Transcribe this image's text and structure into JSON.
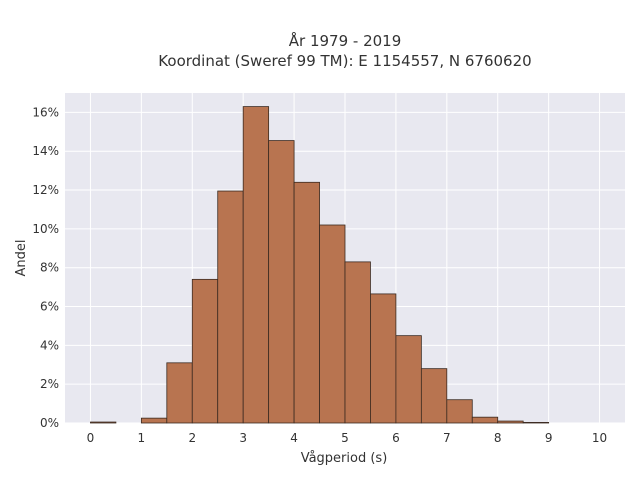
{
  "chart_data": {
    "type": "bar",
    "title_line1": "År 1979 - 2019",
    "title_line2": "Koordinat (Sweref 99 TM): E 1154557, N 6760620",
    "xlabel": "Vågperiod (s)",
    "ylabel": "Andel",
    "xlim": [
      -0.5,
      10.5
    ],
    "ylim": [
      0,
      17
    ],
    "x_ticks": [
      0,
      1,
      2,
      3,
      4,
      5,
      6,
      7,
      8,
      9,
      10
    ],
    "y_ticks": [
      0,
      2,
      4,
      6,
      8,
      10,
      12,
      14,
      16
    ],
    "y_tick_suffix": "%",
    "bin_width": 0.5,
    "bins": [
      {
        "x0": 0.0,
        "value": 0.05
      },
      {
        "x0": 0.5,
        "value": 0.0
      },
      {
        "x0": 1.0,
        "value": 0.25
      },
      {
        "x0": 1.5,
        "value": 3.1
      },
      {
        "x0": 2.0,
        "value": 7.4
      },
      {
        "x0": 2.5,
        "value": 11.95
      },
      {
        "x0": 3.0,
        "value": 16.3
      },
      {
        "x0": 3.5,
        "value": 14.55
      },
      {
        "x0": 4.0,
        "value": 12.4
      },
      {
        "x0": 4.5,
        "value": 10.2
      },
      {
        "x0": 5.0,
        "value": 8.3
      },
      {
        "x0": 5.5,
        "value": 6.65
      },
      {
        "x0": 6.0,
        "value": 4.5
      },
      {
        "x0": 6.5,
        "value": 2.8
      },
      {
        "x0": 7.0,
        "value": 1.2
      },
      {
        "x0": 7.5,
        "value": 0.3
      },
      {
        "x0": 8.0,
        "value": 0.1
      },
      {
        "x0": 8.5,
        "value": 0.03
      }
    ],
    "grid": true,
    "colors": {
      "bar_fill": "#b87450",
      "bar_edge": "#3b2a20",
      "plot_bg": "#e8e8f0",
      "grid": "#ffffff"
    }
  }
}
